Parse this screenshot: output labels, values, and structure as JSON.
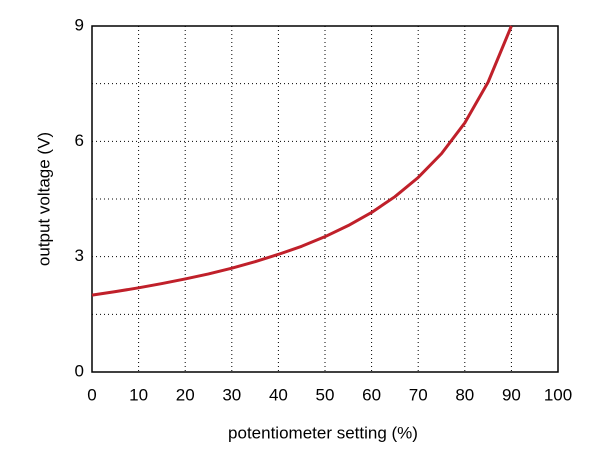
{
  "chart_data": {
    "type": "line",
    "x_label": "potentiometer setting (%)",
    "y_label": "output voltage (V)",
    "x": [
      0,
      5,
      10,
      15,
      20,
      25,
      30,
      35,
      40,
      45,
      50,
      55,
      60,
      65,
      70,
      75,
      80,
      85,
      90
    ],
    "series": [
      {
        "color": "#c0202a",
        "values": [
          2.0,
          2.09,
          2.19,
          2.3,
          2.42,
          2.55,
          2.7,
          2.87,
          3.06,
          3.27,
          3.52,
          3.81,
          4.15,
          4.56,
          5.06,
          5.68,
          6.48,
          7.54,
          9.0
        ]
      }
    ],
    "xlim": [
      0,
      100
    ],
    "xticks": [
      0,
      10,
      20,
      30,
      40,
      50,
      60,
      70,
      80,
      90,
      100
    ],
    "ylim": [
      0,
      9
    ],
    "yticks": [
      0,
      3,
      6,
      9
    ],
    "grid": true
  }
}
